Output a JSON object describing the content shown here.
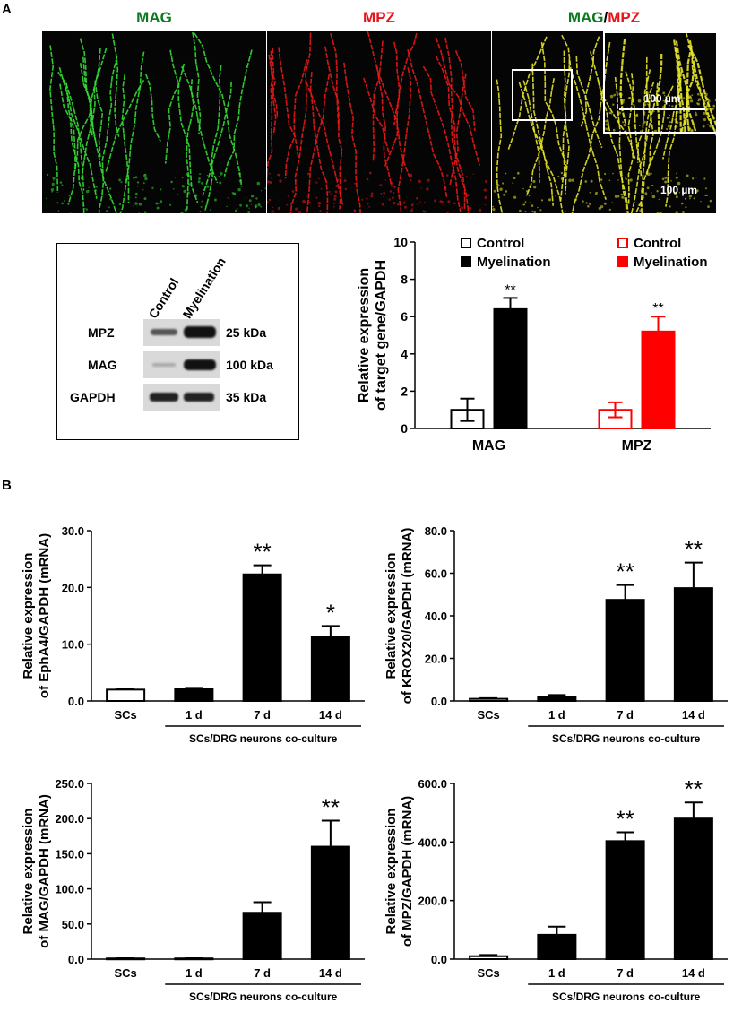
{
  "panel_a": {
    "letter": "A",
    "micrographs": [
      {
        "title": "MAG",
        "title_color": "#0a7a1e",
        "fiber_color": "#33dd33"
      },
      {
        "title": "MPZ",
        "title_color": "#e8141a",
        "fiber_color": "#e81818"
      },
      {
        "title_part1": "MAG",
        "title_sep": "/",
        "title_part2": "MPZ",
        "title_color1": "#0a7a1e",
        "title_color2": "#e8141a",
        "fiber_color": "#e6e62a"
      }
    ],
    "inset_scale": "100 µm",
    "main_scale": "100 µm",
    "western_blot": {
      "columns": [
        "Control",
        "Myelination"
      ],
      "rows": [
        {
          "protein": "MPZ",
          "size": "25 kDa"
        },
        {
          "protein": "MAG",
          "size": "100 kDa"
        },
        {
          "protein": "GAPDH",
          "size": "35 kDa"
        }
      ]
    }
  },
  "panel_b": {
    "letter": "B"
  },
  "colors": {
    "mag_control": "#000000",
    "mag_myel": "#000000",
    "mpz_control": "#ff0000",
    "mpz_myel": "#ff0000"
  },
  "chart_data": [
    {
      "type": "bar",
      "ylabel": "Relative expression of target gene/GAPDH",
      "ylim": [
        0,
        10
      ],
      "yticks": [
        "0",
        "2",
        "4",
        "6",
        "8",
        "10"
      ],
      "categories": [
        "MAG",
        "MPZ"
      ],
      "legend": [
        {
          "label": "Control",
          "style": "open",
          "color": "#000000"
        },
        {
          "label": "Myelination",
          "style": "filled",
          "color": "#000000"
        },
        {
          "label": "Control",
          "style": "open",
          "color": "#ff0000"
        },
        {
          "label": "Myelination",
          "style": "filled",
          "color": "#ff0000"
        }
      ],
      "series": [
        {
          "name": "Control",
          "values": [
            1.0,
            1.0
          ],
          "errors": [
            0.6,
            0.4
          ]
        },
        {
          "name": "Myelination",
          "values": [
            6.4,
            5.2
          ],
          "errors": [
            0.6,
            0.8
          ],
          "significance": [
            "**",
            "**"
          ]
        }
      ]
    },
    {
      "type": "bar",
      "ylabel": "Relative expression of EphA4/GAPDH (mRNA)",
      "ylim": [
        0,
        30
      ],
      "yticks": [
        "0.0",
        "10.0",
        "20.0",
        "30.0"
      ],
      "categories": [
        "SCs",
        "1 d",
        "7 d",
        "14 d"
      ],
      "group_label": "SCs/DRG neurons co-culture",
      "values": [
        2.0,
        2.1,
        22.3,
        11.3
      ],
      "errors": [
        0.1,
        0.2,
        1.6,
        1.9
      ],
      "significance": [
        "",
        "",
        "**",
        "*"
      ]
    },
    {
      "type": "bar",
      "ylabel": "Relative expression of KROX20/GAPDH (mRNA)",
      "ylim": [
        0,
        80
      ],
      "yticks": [
        "0.0",
        "20.0",
        "40.0",
        "60.0",
        "80.0"
      ],
      "categories": [
        "SCs",
        "1 d",
        "7 d",
        "14 d"
      ],
      "group_label": "SCs/DRG neurons co-culture",
      "values": [
        1.0,
        2.0,
        47.5,
        53.0
      ],
      "errors": [
        0.3,
        0.8,
        7.0,
        12.0
      ],
      "significance": [
        "",
        "",
        "**",
        "**"
      ]
    },
    {
      "type": "bar",
      "ylabel": "Relative expression of MAG/GAPDH (mRNA)",
      "ylim": [
        0,
        250
      ],
      "yticks": [
        "0.0",
        "50.0",
        "100.0",
        "150.0",
        "200.0",
        "250.0"
      ],
      "categories": [
        "SCs",
        "1 d",
        "7 d",
        "14 d"
      ],
      "group_label": "SCs/DRG neurons co-culture",
      "values": [
        1.0,
        1.0,
        66.0,
        160.0
      ],
      "errors": [
        0.2,
        0.2,
        15.0,
        37.0
      ],
      "significance": [
        "",
        "",
        "",
        "**"
      ]
    },
    {
      "type": "bar",
      "ylabel": "Relative expression of MPZ/GAPDH (mRNA)",
      "ylim": [
        0,
        600
      ],
      "yticks": [
        "0.0",
        "200.0",
        "400.0",
        "600.0"
      ],
      "categories": [
        "SCs",
        "1 d",
        "7 d",
        "14 d"
      ],
      "group_label": "SCs/DRG neurons co-culture",
      "values": [
        10.0,
        83.0,
        403.0,
        480.0
      ],
      "errors": [
        4.0,
        28.0,
        30.0,
        55.0
      ],
      "significance": [
        "",
        "",
        "**",
        "**"
      ]
    }
  ]
}
